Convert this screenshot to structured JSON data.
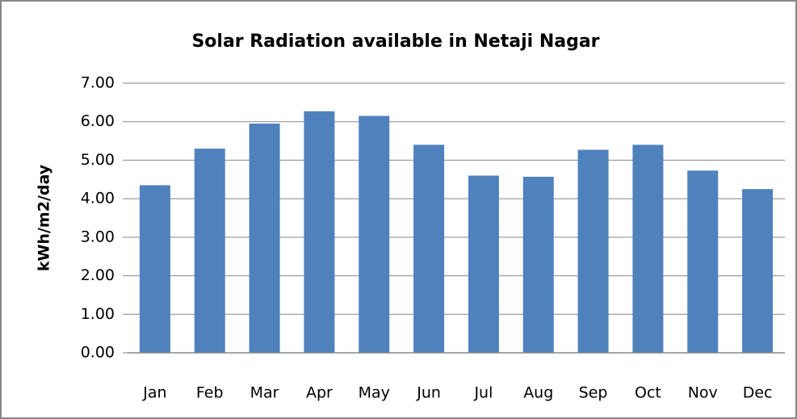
{
  "chart_data": {
    "type": "bar",
    "title": "Solar Radiation available in Netaji Nagar",
    "y_label": "kWh/m2/day",
    "categories": [
      "Jan",
      "Feb",
      "Mar",
      "Apr",
      "May",
      "Jun",
      "Jul",
      "Aug",
      "Sep",
      "Oct",
      "Nov",
      "Dec"
    ],
    "values": [
      4.35,
      5.3,
      5.95,
      6.27,
      6.15,
      5.4,
      4.6,
      4.57,
      5.27,
      5.4,
      4.73,
      4.25
    ],
    "color": "#4f81bd",
    "ylim": [
      0,
      7
    ],
    "yticks": [
      {
        "value": 0,
        "label": "0.00"
      },
      {
        "value": 1,
        "label": "1.00"
      },
      {
        "value": 2,
        "label": "2.00"
      },
      {
        "value": 3,
        "label": "3.00"
      },
      {
        "value": 4,
        "label": "4.00"
      },
      {
        "value": 5,
        "label": "5.00"
      },
      {
        "value": 6,
        "label": "6.00"
      },
      {
        "value": 7,
        "label": "7.00"
      }
    ],
    "grid": true
  }
}
